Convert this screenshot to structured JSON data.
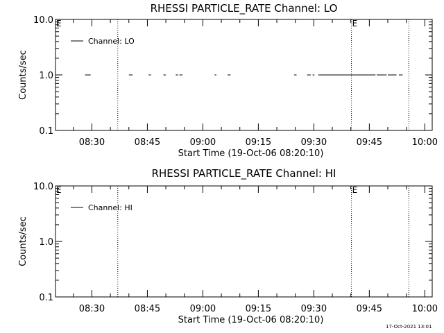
{
  "chart_data": [
    {
      "type": "line",
      "title": "RHESSI PARTICLE_RATE Channel: LO",
      "xlabel": "Start Time (19-Oct-06 08:20:10)",
      "ylabel": "Counts/sec",
      "y_scale": "log",
      "ylim": [
        0.1,
        10.0
      ],
      "y_ticks": [
        "0.1",
        "1.0",
        "10.0"
      ],
      "x_ticks": [
        "08:30",
        "08:45",
        "09:00",
        "09:15",
        "09:30",
        "09:45",
        "10:00"
      ],
      "xlim": [
        "08:20:10",
        "10:02:00"
      ],
      "grid": false,
      "legend_position": "top-left",
      "series": [
        {
          "name": "Channel: LO",
          "segments": [
            {
              "x": [
                "08:28:10",
                "08:29:40"
              ],
              "y": 1.0
            },
            {
              "x": [
                "08:40:00",
                "08:41:00"
              ],
              "y": 1.0
            },
            {
              "x": [
                "08:45:20",
                "08:46:00"
              ],
              "y": 1.0
            },
            {
              "x": [
                "08:49:20",
                "08:50:00"
              ],
              "y": 1.0
            },
            {
              "x": [
                "08:52:40",
                "08:53:20"
              ],
              "y": 1.0
            },
            {
              "x": [
                "08:53:40",
                "08:54:30"
              ],
              "y": 1.0
            },
            {
              "x": [
                "09:03:10",
                "09:03:40"
              ],
              "y": 1.0
            },
            {
              "x": [
                "09:06:40",
                "09:07:30"
              ],
              "y": 1.0
            },
            {
              "x": [
                "09:24:40",
                "09:25:20"
              ],
              "y": 1.0
            },
            {
              "x": [
                "09:28:10",
                "09:29:10"
              ],
              "y": 1.0
            },
            {
              "x": [
                "09:29:40",
                "09:30:10"
              ],
              "y": 1.0
            },
            {
              "x": [
                "09:31:10",
                "09:46:40"
              ],
              "y": 1.0
            },
            {
              "x": [
                "09:47:00",
                "09:49:40"
              ],
              "y": 1.0
            },
            {
              "x": [
                "09:50:00",
                "09:52:20"
              ],
              "y": 1.0
            },
            {
              "x": [
                "09:53:00",
                "09:54:00"
              ],
              "y": 1.0
            }
          ]
        }
      ],
      "annotations": [
        {
          "type": "vline",
          "x": "08:37:00",
          "label": ""
        },
        {
          "type": "vline",
          "x": "09:40:10",
          "label": "E"
        },
        {
          "type": "vline",
          "x": "09:55:40",
          "label": ""
        }
      ],
      "corner_label": "E"
    },
    {
      "type": "line",
      "title": "RHESSI PARTICLE_RATE Channel: HI",
      "xlabel": "Start Time (19-Oct-06 08:20:10)",
      "ylabel": "Counts/sec",
      "y_scale": "log",
      "ylim": [
        0.1,
        10.0
      ],
      "y_ticks": [
        "0.1",
        "1.0",
        "10.0"
      ],
      "x_ticks": [
        "08:30",
        "08:45",
        "09:00",
        "09:15",
        "09:30",
        "09:45",
        "10:00"
      ],
      "xlim": [
        "08:20:10",
        "10:02:00"
      ],
      "grid": false,
      "legend_position": "top-left",
      "series": [
        {
          "name": "Channel: HI",
          "segments": []
        }
      ],
      "annotations": [
        {
          "type": "vline",
          "x": "08:37:00",
          "label": ""
        },
        {
          "type": "vline",
          "x": "09:40:10",
          "label": "E"
        },
        {
          "type": "vline",
          "x": "09:55:40",
          "label": ""
        }
      ],
      "corner_label": "E"
    }
  ],
  "footer": {
    "timestamp": "17-Oct-2021 13:01"
  }
}
